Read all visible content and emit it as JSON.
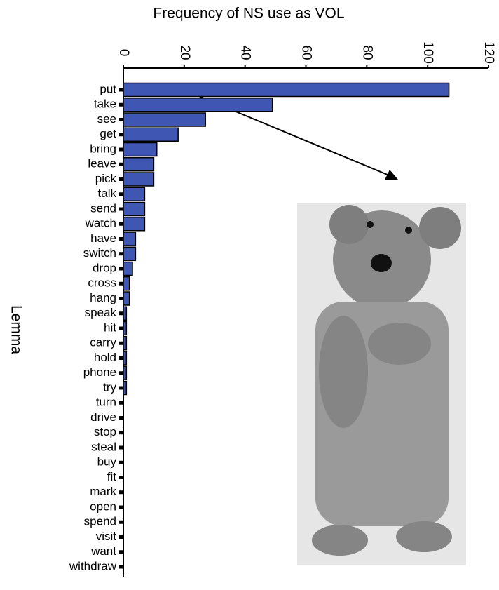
{
  "chart_data": {
    "type": "bar",
    "orientation": "horizontal",
    "x_label": "Frequency of NS use as VOL",
    "y_label": "Lemma",
    "categories": [
      "put",
      "take",
      "see",
      "get",
      "bring",
      "leave",
      "pick",
      "talk",
      "send",
      "watch",
      "have",
      "switch",
      "drop",
      "cross",
      "hang",
      "speak",
      "hit",
      "carry",
      "hold",
      "phone",
      "try",
      "turn",
      "drive",
      "stop",
      "steal",
      "buy",
      "fit",
      "mark",
      "open",
      "spend",
      "visit",
      "want",
      "withdraw"
    ],
    "values": [
      107,
      49,
      27,
      18,
      11,
      10,
      10,
      7,
      7,
      7,
      4,
      4,
      3,
      2,
      2,
      1,
      1,
      1,
      1,
      1,
      1,
      0,
      0,
      0,
      0,
      0,
      0,
      0,
      0,
      0,
      0,
      0,
      0
    ],
    "color": "#3f57b3",
    "xlim": [
      0,
      120
    ],
    "xticks": [
      0,
      20,
      40,
      60,
      80,
      100,
      120
    ]
  }
}
